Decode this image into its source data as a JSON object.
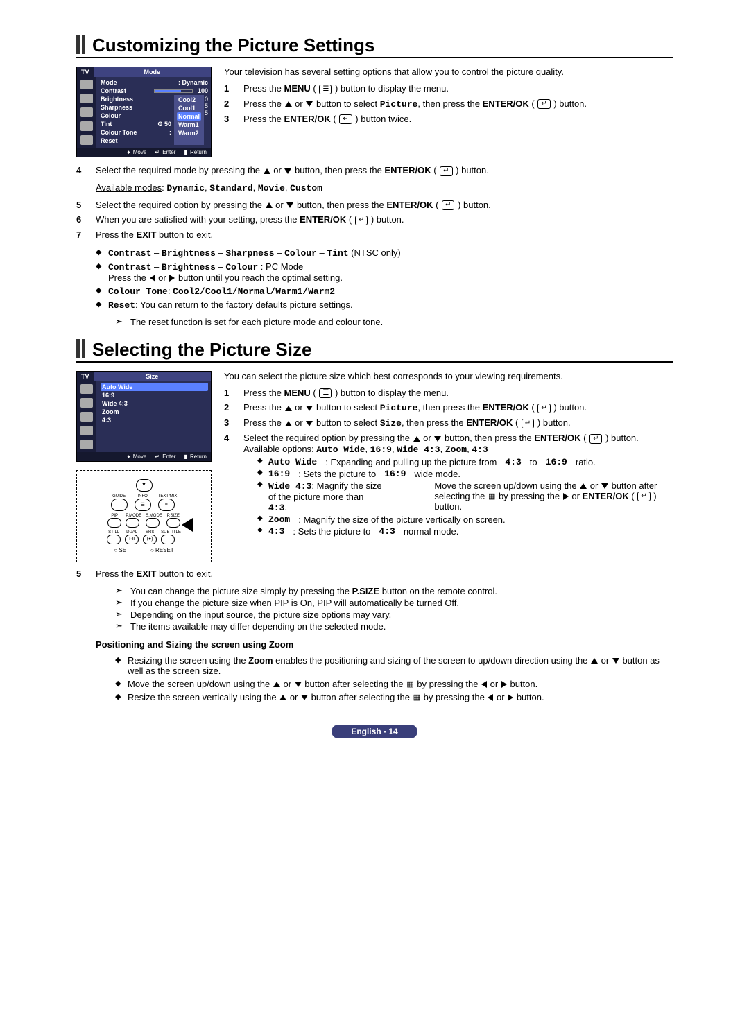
{
  "sections": {
    "s1": {
      "title": "Customizing the Picture Settings"
    },
    "s2": {
      "title": "Selecting the Picture Size"
    }
  },
  "osd1": {
    "tv": "TV",
    "menu_title": "Mode",
    "items": {
      "mode": "Mode",
      "mode_val": ": Dynamic",
      "contrast": "Contrast",
      "contrast_val": "100",
      "brightness": "Brightness",
      "sharpness": "Sharpness",
      "colour": "Colour",
      "tint": "Tint",
      "tint_val": "G 50",
      "colour_tone": "Colour Tone",
      "reset": "Reset"
    },
    "drop": {
      "cool2": "Cool2",
      "cool1": "Cool1",
      "normal": "Normal",
      "warm1": "Warm1",
      "warm2": "Warm2"
    },
    "side_numbers": {
      "a": "0",
      "b": "5",
      "c": "5"
    },
    "footer": {
      "move": "Move",
      "enter": "Enter",
      "return": "Return"
    }
  },
  "osd2": {
    "tv": "TV",
    "menu_title": "Size",
    "items": {
      "auto_wide": "Auto Wide",
      "r169": "16:9",
      "wide43": "Wide 4:3",
      "zoom": "Zoom",
      "r43": "4:3"
    },
    "footer": {
      "move": "Move",
      "enter": "Enter",
      "return": "Return"
    }
  },
  "remote": {
    "row_top": {
      "a": "▼"
    },
    "labels1": {
      "a": "GUIDE",
      "b": "INFO",
      "c": "TEXT/MIX"
    },
    "labels2": {
      "a": "PIP",
      "b": "P.MODE",
      "c": "S.MODE",
      "d": "P.SIZE"
    },
    "labels3": {
      "a": "STILL",
      "b": "DUAL",
      "c": "SRS",
      "d": "SUBTITLE"
    },
    "foot": {
      "a": "SET",
      "b": "RESET"
    }
  },
  "s1_intro": "Your television has several setting options that allow you to control the picture quality.",
  "s1_steps": {
    "1": "Press the <b>MENU</b> ( <span class='glyph menu'></span> ) button to display the menu.",
    "2": "Press the <span class='tri-up'></span> or <span class='tri-down'></span> button to select <span class='mono'>Picture</span>, then press the <b>ENTER/OK</b> ( <span class='glyph enter'></span> ) button.",
    "3": "Press the <b>ENTER/OK</b> ( <span class='glyph enter'></span> ) button twice.",
    "4": "Select the required mode by pressing the <span class='tri-up'></span> or <span class='tri-down'></span> button, then press the <b>ENTER/OK</b> ( <span class='glyph enter'></span> ) button.",
    "4a": "<span class='underline'>Available modes</span>: <span class='mono'>Dynamic</span>, <span class='mono'>Standard</span>, <span class='mono'>Movie</span>, <span class='mono'>Custom</span>",
    "5": "Select the required option by pressing the <span class='tri-up'></span> or <span class='tri-down'></span> button, then press the <b>ENTER/OK</b> ( <span class='glyph enter'></span> ) button.",
    "6": "When you are satisfied with your setting, press the <b>ENTER/OK</b> ( <span class='glyph enter'></span> ) button.",
    "7": "Press the <b>EXIT</b> button to exit."
  },
  "s1_bullets": {
    "b1": "<span class='mono'>Contrast</span> – <span class='mono'>Brightness</span> – <span class='mono'>Sharpness</span> – <span class='mono'>Colour</span> – <span class='mono'>Tint</span> (NTSC only)",
    "b2": "<span class='mono'>Contrast</span> – <span class='mono'>Brightness</span>  – <span class='mono'>Colour</span> : PC Mode",
    "b2a": "Press the <span class='tri-left'></span> or <span class='tri-right'></span> button until you reach the optimal setting.",
    "b3": "<span class='mono'>Colour Tone</span>: <span class='mono'>Cool2/Cool1/Normal/Warm1/Warm2</span>",
    "b4": "<span class='mono'>Reset</span>: You can return to the factory defaults picture settings.",
    "b4a": "The reset function is set for each picture mode and colour tone."
  },
  "s2_intro": "You can select the picture size which best corresponds to your viewing requirements.",
  "s2_steps": {
    "1": "Press the <b>MENU</b> ( <span class='glyph menu'></span> ) button to display the menu.",
    "2": "Press the <span class='tri-up'></span> or <span class='tri-down'></span> button to select <span class='mono'>Picture</span>, then press the <b>ENTER/OK</b> ( <span class='glyph enter'></span> ) button.",
    "3": "Press the <span class='tri-up'></span> or <span class='tri-down'></span> button to select <span class='mono'>Size</span>, then press the <b>ENTER/OK</b> ( <span class='glyph enter'></span> ) button.",
    "4": "Select the required option by pressing the <span class='tri-up'></span> or <span class='tri-down'></span> button, then press the <b>ENTER/OK</b> ( <span class='glyph enter'></span> ) button.",
    "4a": "<span class='underline'>Available options</span>: <span class='mono'>Auto Wide</span>, <span class='mono'>16:9</span>, <span class='mono'>Wide 4:3</span>, <span class='mono'>Zoom</span>, <span class='mono'>4:3</span>",
    "5": "Press the <b>EXIT</b> button to exit."
  },
  "s2_opts": {
    "o1": "<span class='mono'>Auto Wide</span>: Expanding and pulling up the picture from <span class='mono'>4:3</span> to <span class='mono'>16:9</span> ratio.",
    "o2": "<span class='mono'>16:9</span>: Sets the picture to <span class='mono'>16:9</span> wide mode.",
    "o3": "<span class='mono'>Wide 4:3</span>: Magnify the size of the picture more than <span class='mono'>4:3</span>.",
    "o3a": "Move the screen up/down using the <span class='tri-up'></span> or <span class='tri-down'></span> button after selecting the <span class='glyph small-icon'></span> by pressing the <span class='tri-right'></span> or <b>ENTER/OK</b> ( <span class='glyph enter'></span> ) button.",
    "o4": "<span class='mono'>Zoom</span>: Magnify the size of the picture vertically on screen.",
    "o5": "<span class='mono'>4:3</span>: Sets the picture to <span class='mono'>4:3</span> normal mode."
  },
  "s2_arrows": {
    "a1": "You can change the picture size simply by pressing the <b>P.SIZE</b> button on the remote control.",
    "a2": "If you change the picture size when PIP is On, PIP will automatically be turned Off.",
    "a3": "Depending on the input source, the picture size options may vary.",
    "a4": "The items available may differ depending on the selected mode."
  },
  "s2_zoom": {
    "head": "Positioning and Sizing the screen using Zoom",
    "z1": "Resizing the screen using the <b>Zoom</b> enables the positioning and sizing of the screen to up/down direction using the <span class='tri-up'></span> or <span class='tri-down'></span> button as well as the screen size.",
    "z2": "Move the screen up/down using the <span class='tri-up'></span> or <span class='tri-down'></span> button after selecting the <span class='glyph small-icon'></span> by pressing the <span class='tri-left'></span> or <span class='tri-right'></span> button.",
    "z3": "Resize the screen vertically using the <span class='tri-up'></span> or <span class='tri-down'></span> button after selecting the <span class='glyph small-icon'></span> by pressing the <span class='tri-left'></span> or <span class='tri-right'></span> button."
  },
  "footer": {
    "text": "English - 14"
  }
}
